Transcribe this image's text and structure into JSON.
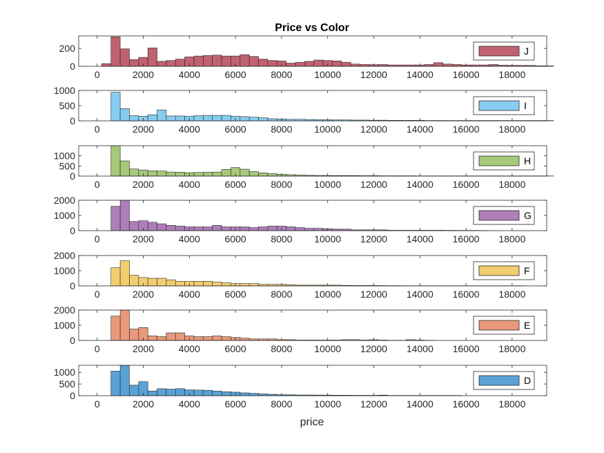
{
  "chart_data": {
    "type": "bar",
    "title": "Price vs Color",
    "xlabel": "price",
    "xlim": [
      -800,
      19500
    ],
    "xticks": [
      0,
      2000,
      4000,
      6000,
      8000,
      10000,
      12000,
      14000,
      16000,
      18000
    ],
    "bin_width": 400,
    "bin_start": 200,
    "legend_placement": "right",
    "grid": false,
    "panels": [
      {
        "name": "J",
        "color": "#c06270",
        "ylim": [
          0,
          340
        ],
        "yticks": [
          0,
          200
        ],
        "values": [
          30,
          330,
          195,
          75,
          100,
          205,
          55,
          65,
          80,
          105,
          115,
          120,
          125,
          115,
          115,
          130,
          110,
          80,
          65,
          60,
          35,
          45,
          55,
          70,
          65,
          60,
          45,
          25,
          20,
          18,
          20,
          15,
          15,
          15,
          15,
          20,
          40,
          25,
          20,
          15,
          15,
          15,
          20,
          12,
          10,
          10,
          10,
          5,
          5
        ]
      },
      {
        "name": "I",
        "color": "#86cdef",
        "ylim": [
          0,
          1000
        ],
        "yticks": [
          0,
          500,
          1000
        ],
        "values": [
          0,
          940,
          400,
          170,
          150,
          200,
          360,
          160,
          160,
          150,
          170,
          180,
          180,
          180,
          150,
          140,
          120,
          100,
          70,
          60,
          50,
          50,
          45,
          40,
          35,
          30,
          30,
          25,
          25,
          20,
          20,
          15,
          15,
          15,
          15,
          10,
          10,
          10,
          10,
          10,
          10,
          10,
          10,
          10,
          10,
          10,
          10,
          10,
          10
        ]
      },
      {
        "name": "H",
        "color": "#a6c97a",
        "ylim": [
          0,
          1500
        ],
        "yticks": [
          0,
          500,
          1000
        ],
        "values": [
          0,
          1500,
          750,
          350,
          300,
          260,
          250,
          200,
          190,
          170,
          180,
          190,
          200,
          330,
          420,
          340,
          220,
          160,
          120,
          90,
          70,
          50,
          40,
          30,
          30,
          25,
          25,
          25,
          20,
          20,
          15,
          15,
          15,
          15,
          10,
          10,
          10,
          10,
          10,
          10,
          10,
          10,
          10,
          10,
          10,
          10,
          10,
          10,
          10
        ]
      },
      {
        "name": "G",
        "color": "#ad7eba",
        "ylim": [
          0,
          2000
        ],
        "yticks": [
          0,
          1000,
          2000
        ],
        "values": [
          0,
          1600,
          2000,
          600,
          650,
          550,
          450,
          350,
          300,
          250,
          250,
          250,
          350,
          250,
          250,
          250,
          200,
          250,
          300,
          300,
          250,
          200,
          150,
          150,
          125,
          100,
          100,
          50,
          50,
          50,
          50,
          25,
          25,
          25,
          25,
          25,
          25,
          20,
          20,
          15,
          15,
          10
        ]
      },
      {
        "name": "F",
        "color": "#f3ce70",
        "ylim": [
          0,
          2000
        ],
        "yticks": [
          0,
          1000,
          2000
        ],
        "values": [
          0,
          1200,
          1650,
          700,
          550,
          500,
          500,
          400,
          300,
          300,
          300,
          300,
          250,
          200,
          150,
          150,
          150,
          100,
          100,
          100,
          75,
          50,
          50,
          50,
          50,
          50,
          30,
          25,
          25,
          25,
          20,
          15,
          15,
          10,
          10,
          10,
          10,
          10,
          10,
          10,
          10,
          10,
          10,
          10,
          10,
          10
        ]
      },
      {
        "name": "E",
        "color": "#e99a7b",
        "ylim": [
          0,
          2000
        ],
        "yticks": [
          0,
          1000,
          2000
        ],
        "values": [
          0,
          1600,
          2000,
          750,
          850,
          300,
          250,
          500,
          500,
          300,
          250,
          250,
          300,
          250,
          200,
          150,
          100,
          100,
          100,
          50,
          50,
          25,
          25,
          25,
          25,
          25,
          50,
          50,
          25,
          50,
          25,
          10,
          10,
          50,
          25,
          10
        ]
      },
      {
        "name": "D",
        "color": "#5aa2d6",
        "ylim": [
          0,
          1300
        ],
        "yticks": [
          0,
          500,
          1000
        ],
        "values": [
          0,
          1050,
          1300,
          450,
          600,
          200,
          300,
          280,
          300,
          250,
          240,
          230,
          200,
          170,
          150,
          120,
          100,
          75,
          60,
          40,
          40,
          30,
          30,
          25,
          25,
          20,
          20,
          15,
          15,
          15,
          25,
          10,
          10,
          10,
          10,
          10,
          10,
          10,
          10
        ]
      }
    ]
  }
}
